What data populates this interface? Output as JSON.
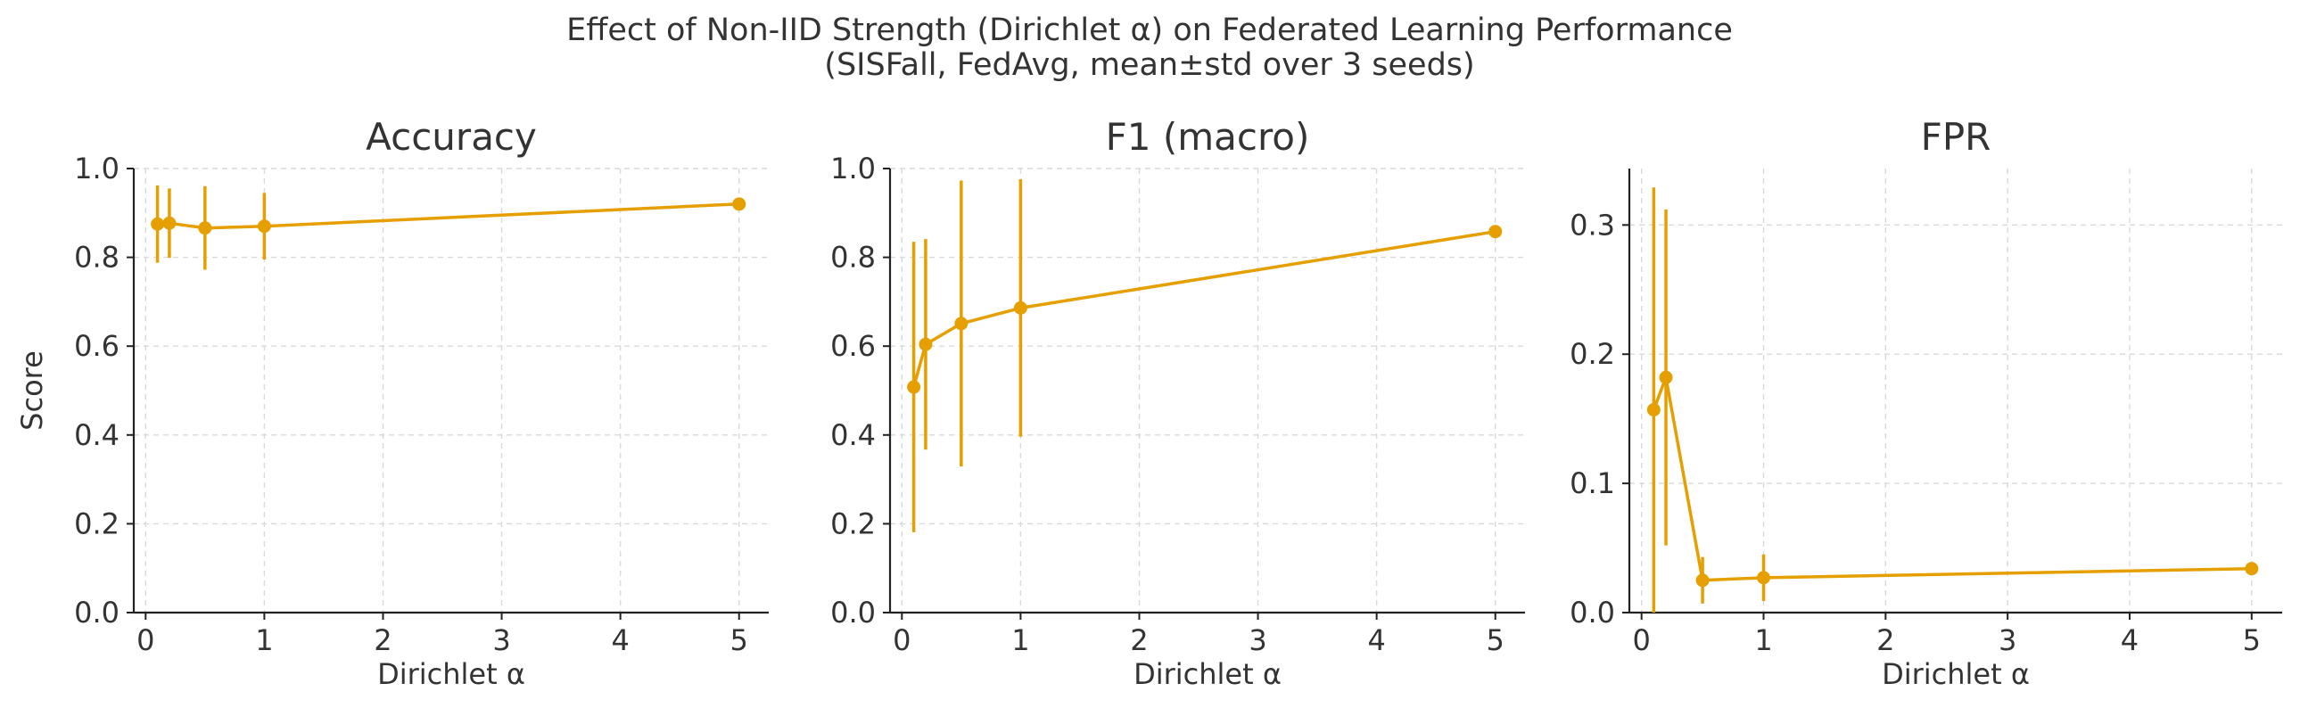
{
  "suptitle": [
    "Effect of Non-IID Strength (Dirichlet α) on Federated Learning Performance",
    "(SISFall, FedAvg, mean±std over 3 seeds)"
  ],
  "colors": {
    "series": "#e69f00",
    "axis": "#222222",
    "grid": "#d9d9d9",
    "text": "#333333"
  },
  "chart_data": [
    {
      "type": "line",
      "title": "Accuracy",
      "xlabel": "Dirichlet α",
      "ylabel": "Score",
      "x": [
        0.1,
        0.2,
        0.5,
        1,
        5
      ],
      "y": [
        0.875,
        0.877,
        0.866,
        0.87,
        0.92
      ],
      "yerr": [
        0.087,
        0.078,
        0.094,
        0.075,
        0.0
      ],
      "xlim": [
        -0.1,
        5.25
      ],
      "ylim": [
        0,
        1.0
      ],
      "xticks": [
        0,
        1,
        2,
        3,
        4,
        5
      ],
      "yticks": [
        0.0,
        0.2,
        0.4,
        0.6,
        0.8,
        1.0
      ],
      "ytick_decimals": 1,
      "grid": true
    },
    {
      "type": "line",
      "title": "F1 (macro)",
      "xlabel": "Dirichlet α",
      "ylabel": "",
      "x": [
        0.1,
        0.2,
        0.5,
        1,
        5
      ],
      "y": [
        0.508,
        0.604,
        0.651,
        0.686,
        0.858
      ],
      "yerr": [
        0.327,
        0.237,
        0.322,
        0.29,
        0.0
      ],
      "xlim": [
        -0.1,
        5.25
      ],
      "ylim": [
        0,
        1.0
      ],
      "xticks": [
        0,
        1,
        2,
        3,
        4,
        5
      ],
      "yticks": [
        0.0,
        0.2,
        0.4,
        0.6,
        0.8,
        1.0
      ],
      "ytick_decimals": 1,
      "grid": true
    },
    {
      "type": "line",
      "title": "FPR",
      "xlabel": "Dirichlet α",
      "ylabel": "",
      "x": [
        0.1,
        0.2,
        0.5,
        1,
        5
      ],
      "y": [
        0.157,
        0.182,
        0.025,
        0.027,
        0.034
      ],
      "yerr": [
        0.172,
        0.13,
        0.018,
        0.018,
        0.0
      ],
      "xlim": [
        -0.1,
        5.25
      ],
      "ylim": [
        0,
        0.3437
      ],
      "xticks": [
        0,
        1,
        2,
        3,
        4,
        5
      ],
      "yticks": [
        0.0,
        0.1,
        0.2,
        0.3
      ],
      "ytick_decimals": 1,
      "grid": true
    }
  ]
}
